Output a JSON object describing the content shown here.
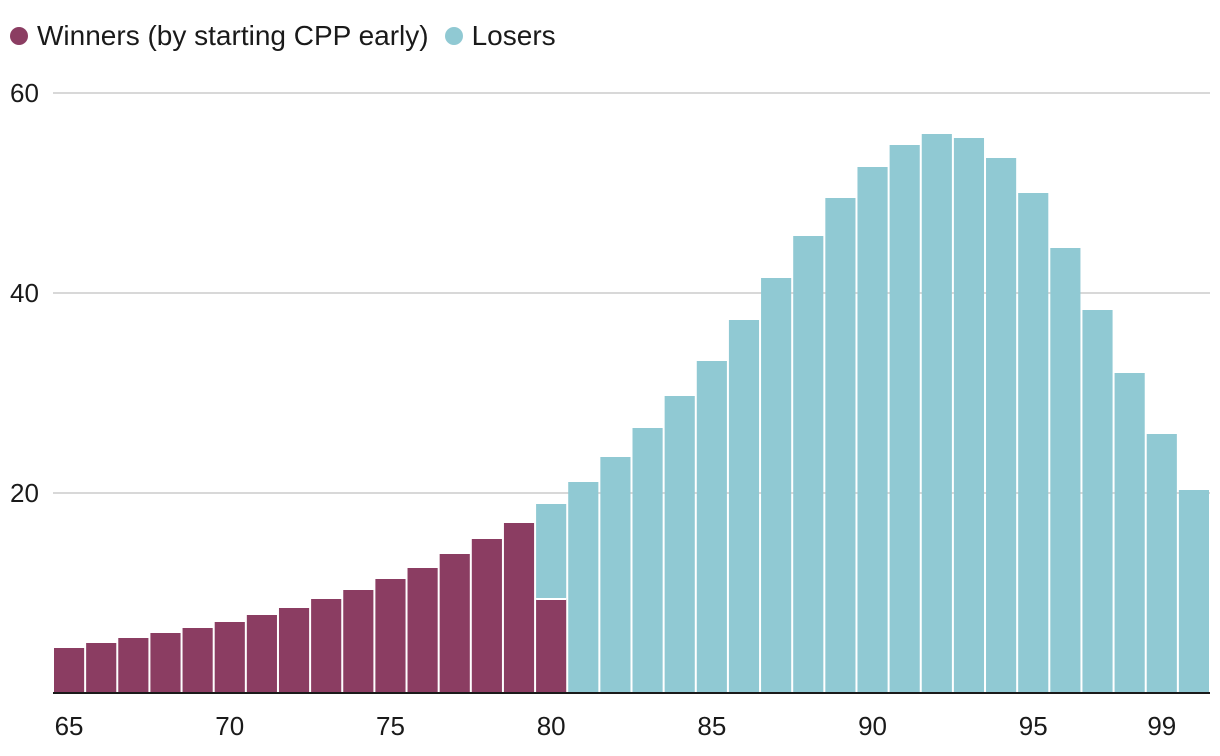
{
  "chart_data": {
    "type": "bar",
    "stacked": true,
    "title": "",
    "xlabel": "",
    "ylabel": "",
    "ylim": [
      0,
      60
    ],
    "grid": true,
    "legend_position": "top-left",
    "yticks": [
      "20",
      "40",
      "60"
    ],
    "xticks": [
      {
        "label": "65",
        "at": 65
      },
      {
        "label": "70",
        "at": 70
      },
      {
        "label": "75",
        "at": 75
      },
      {
        "label": "80",
        "at": 80
      },
      {
        "label": "85",
        "at": 85
      },
      {
        "label": "90",
        "at": 90
      },
      {
        "label": "95",
        "at": 95
      },
      {
        "label": "99",
        "at": 99
      }
    ],
    "categories": [
      65,
      66,
      67,
      68,
      69,
      70,
      71,
      72,
      73,
      74,
      75,
      76,
      77,
      78,
      79,
      80,
      81,
      82,
      83,
      84,
      85,
      86,
      87,
      88,
      89,
      90,
      91,
      92,
      93,
      94,
      95,
      96,
      97,
      98,
      99,
      100
    ],
    "series": [
      {
        "name": "Winners (by starting CPP early)",
        "color": "#8b3d62",
        "values": [
          4.5,
          5.0,
          5.5,
          6.0,
          6.5,
          7.1,
          7.8,
          8.5,
          9.4,
          10.3,
          11.4,
          12.5,
          13.9,
          15.4,
          17.0,
          9.4,
          0,
          0,
          0,
          0,
          0,
          0,
          0,
          0,
          0,
          0,
          0,
          0,
          0,
          0,
          0,
          0,
          0,
          0,
          0,
          0
        ]
      },
      {
        "name": "Losers",
        "color": "#90c9d3",
        "values": [
          0,
          0,
          0,
          0,
          0,
          0,
          0,
          0,
          0,
          0,
          0,
          0,
          0,
          0,
          0,
          9.5,
          21.1,
          23.6,
          26.5,
          29.7,
          33.2,
          37.3,
          41.5,
          45.7,
          49.5,
          52.6,
          54.8,
          55.9,
          55.5,
          53.5,
          50.0,
          44.5,
          38.3,
          32.0,
          25.9,
          20.3
        ]
      }
    ]
  }
}
